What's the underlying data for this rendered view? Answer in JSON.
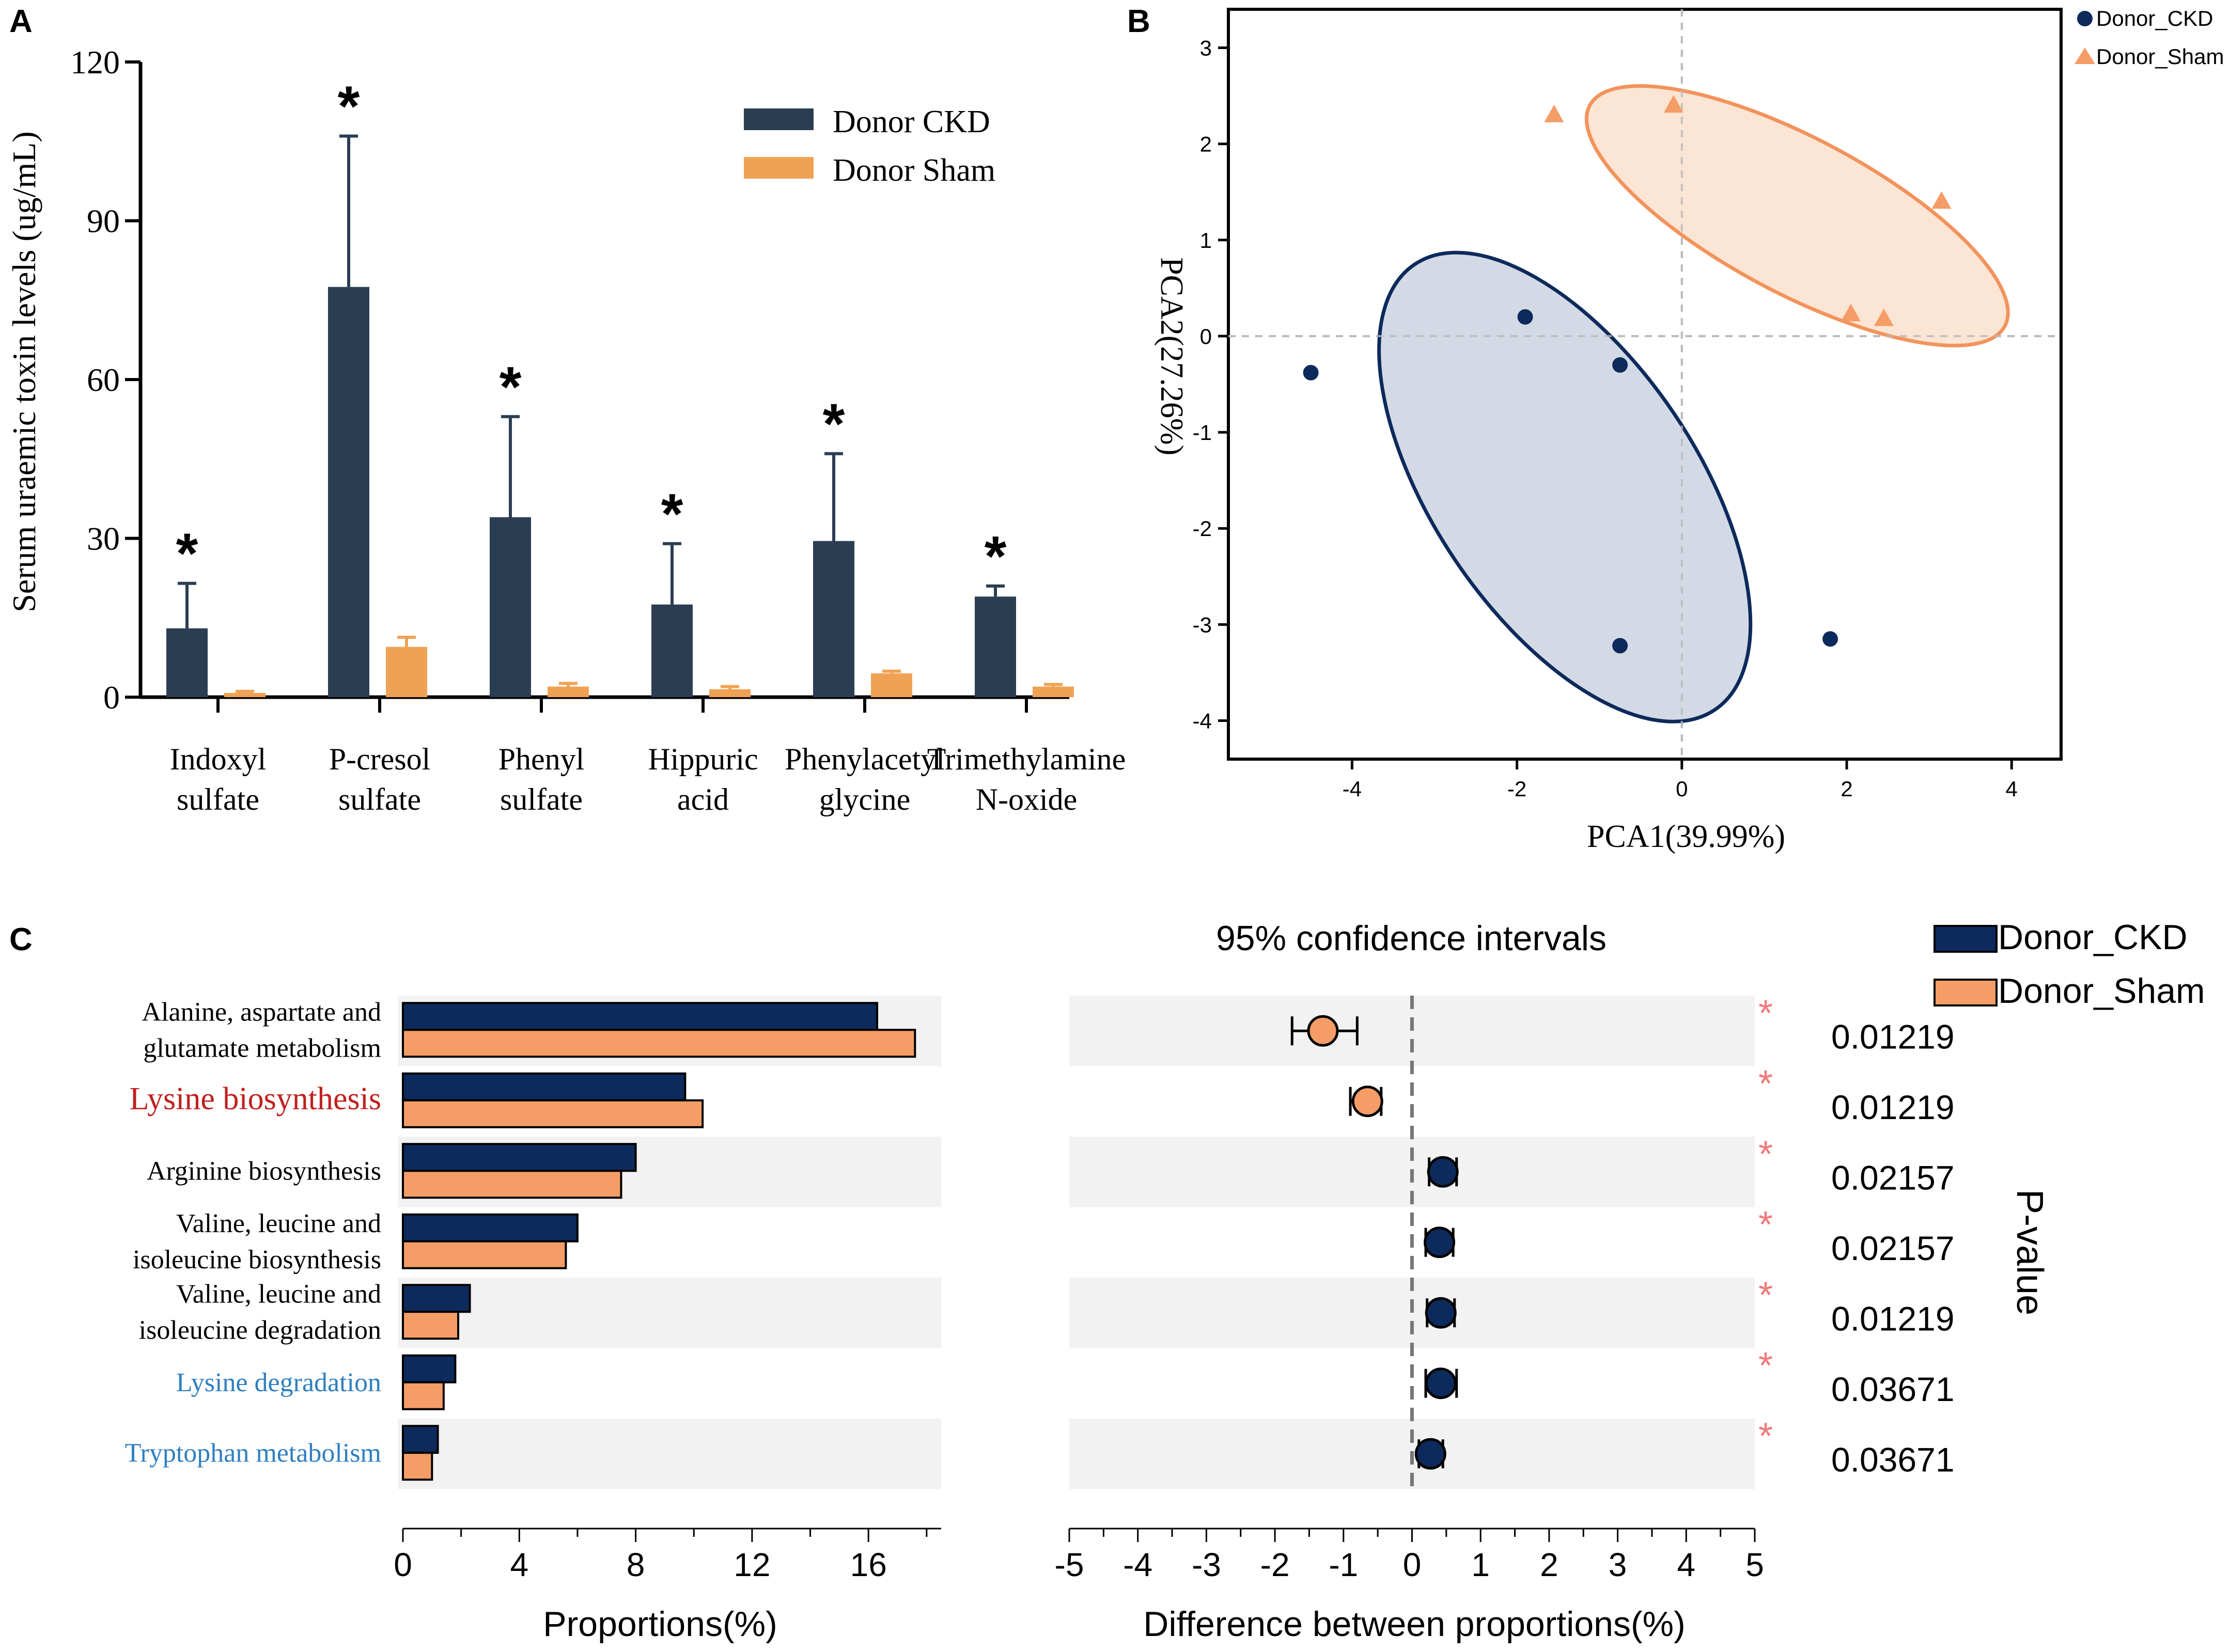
{
  "colors": {
    "ckd": "#2b3d52",
    "sham": "#f0a254",
    "ckd_b": "#0d2a5c",
    "sham_b": "#f59d66",
    "star_c": "#f07a7a",
    "link_red": "#c0201e",
    "link_blue": "#2f7fc0"
  },
  "panels": {
    "a": "A",
    "b": "B",
    "c": "C"
  },
  "chart_data": [
    {
      "type": "bar",
      "panel": "A",
      "ylabel": "Serum uraemic toxin levels (ug/mL)",
      "ylim": [
        0,
        120
      ],
      "yticks": [
        "0",
        "30",
        "60",
        "90",
        "120"
      ],
      "categories": [
        [
          "Indoxyl",
          "sulfate"
        ],
        [
          "P-cresol",
          "sulfate"
        ],
        [
          "Phenyl",
          "sulfate"
        ],
        [
          "Hippuric",
          "acid"
        ],
        [
          "Phenylacetyl",
          "glycine"
        ],
        [
          "Trimethylamine",
          "N-oxide"
        ]
      ],
      "series": [
        {
          "name": "Donor CKD",
          "values": [
            13,
            77.5,
            34,
            17.5,
            29.5,
            19
          ],
          "errors": [
            8.5,
            28.5,
            19,
            11.5,
            16.5,
            2
          ]
        },
        {
          "name": "Donor Sham",
          "values": [
            0.8,
            9.5,
            2,
            1.5,
            4.5,
            2
          ],
          "errors": [
            0.3,
            1.8,
            0.6,
            0.5,
            0.4,
            0.4
          ]
        }
      ],
      "significance": [
        "*",
        "*",
        "*",
        "*",
        "*",
        "*"
      ]
    },
    {
      "type": "scatter",
      "panel": "B",
      "xlabel": "PCA1(39.99%)",
      "ylabel": "PCA2(27.26%)",
      "xlim": [
        -5.5,
        4.6
      ],
      "ylim": [
        -4.4,
        3.4
      ],
      "xticks": [
        "-4",
        "-2",
        "0",
        "2",
        "4"
      ],
      "yticks": [
        "-4",
        "-3",
        "-2",
        "-1",
        "0",
        "1",
        "2",
        "3"
      ],
      "series": [
        {
          "name": "Donor_CKD",
          "marker": "circle",
          "points": [
            [
              -4.5,
              -0.38
            ],
            [
              -1.9,
              0.2
            ],
            [
              -0.75,
              -0.3
            ],
            [
              -0.75,
              -3.22
            ],
            [
              1.8,
              -3.15
            ]
          ]
        },
        {
          "name": "Donor_Sham",
          "marker": "triangle",
          "points": [
            [
              -1.55,
              2.3
            ],
            [
              -0.1,
              2.4
            ],
            [
              3.15,
              1.4
            ],
            [
              2.05,
              0.23
            ],
            [
              2.45,
              0.18
            ]
          ]
        }
      ]
    },
    {
      "type": "bar",
      "panel": "C-left",
      "xlabel": "Proportions(%)",
      "xlim": [
        0,
        18.5
      ],
      "xticks": [
        "0",
        "4",
        "8",
        "12",
        "16"
      ],
      "categories": [
        [
          "Alanine, aspartate and",
          "glutamate metabolism"
        ],
        [
          "Lysine biosynthesis"
        ],
        [
          "Arginine biosynthesis"
        ],
        [
          "Valine, leucine and",
          "isoleucine biosynthesis"
        ],
        [
          "Valine, leucine and",
          "isoleucine degradation"
        ],
        [
          "Lysine degradation"
        ],
        [
          "Tryptophan metabolism"
        ]
      ],
      "series": [
        {
          "name": "Donor_CKD",
          "values": [
            16.3,
            9.7,
            8.0,
            6.0,
            2.3,
            1.8,
            1.2
          ]
        },
        {
          "name": "Donor_Sham",
          "values": [
            17.6,
            10.3,
            7.5,
            5.6,
            1.9,
            1.4,
            1.0
          ]
        }
      ]
    },
    {
      "type": "scatter",
      "panel": "C-right",
      "title": "95% confidence intervals",
      "xlabel": "Difference between proportions(%)",
      "xlim": [
        -5,
        5
      ],
      "xticks": [
        "-5",
        "-4",
        "-3",
        "-2",
        "-1",
        "0",
        "1",
        "2",
        "3",
        "4",
        "5"
      ],
      "differences": [
        -1.3,
        -0.65,
        0.45,
        0.4,
        0.42,
        0.42,
        0.27
      ],
      "ci_low": [
        -1.75,
        -0.9,
        0.25,
        0.2,
        0.22,
        0.2,
        0.1
      ],
      "ci_high": [
        -0.8,
        -0.45,
        0.65,
        0.6,
        0.62,
        0.65,
        0.45
      ],
      "higher_in": [
        "Donor_Sham",
        "Donor_Sham",
        "Donor_CKD",
        "Donor_CKD",
        "Donor_CKD",
        "Donor_CKD",
        "Donor_CKD"
      ],
      "significance": [
        "*",
        "*",
        "*",
        "*",
        "*",
        "*",
        "*"
      ],
      "pvalues": [
        "0.01219",
        "0.01219",
        "0.02157",
        "0.02157",
        "0.01219",
        "0.03671",
        "0.03671"
      ],
      "pvalue_label": "P-value",
      "legend": [
        "Donor_CKD",
        "Donor_Sham"
      ]
    }
  ]
}
